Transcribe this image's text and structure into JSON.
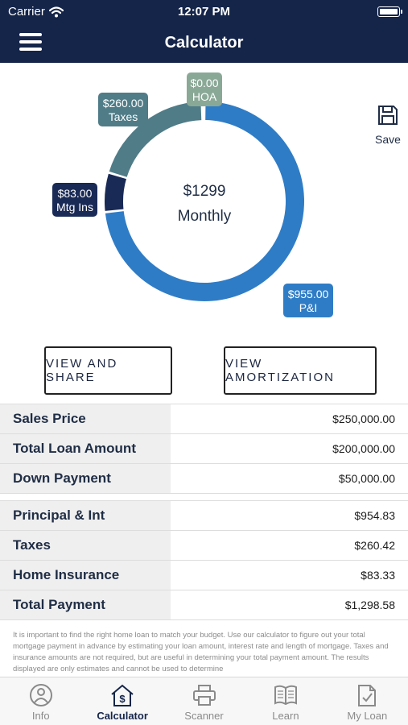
{
  "status_bar": {
    "carrier": "Carrier",
    "time": "12:07 PM"
  },
  "nav": {
    "title": "Calculator"
  },
  "chart_data": {
    "type": "pie",
    "style": "donut",
    "center_value": "$1299",
    "center_label": "Monthly",
    "slices": [
      {
        "name": "P&I",
        "label": "P&I",
        "value_label": "$955.00",
        "value": 955.0,
        "color": "#2f7cc6"
      },
      {
        "name": "Mtg Ins",
        "label": "Mtg Ins",
        "value_label": "$83.00",
        "value": 83.0,
        "color": "#1a2a56"
      },
      {
        "name": "Taxes",
        "label": "Taxes",
        "value_label": "$260.00",
        "value": 260.0,
        "color": "#4f7c87"
      },
      {
        "name": "HOA",
        "label": "HOA",
        "value_label": "$0.00",
        "value": 0.0,
        "color": "#8aa896"
      }
    ]
  },
  "save": {
    "label": "Save",
    "icon": "floppy-disk-icon"
  },
  "buttons": {
    "share": "VIEW AND SHARE",
    "amortization": "VIEW AMORTIZATION"
  },
  "loan_rows": [
    {
      "label": "Sales Price",
      "value": "$250,000.00"
    },
    {
      "label": "Total Loan Amount",
      "value": "$200,000.00"
    },
    {
      "label": "Down Payment",
      "value": "$50,000.00"
    }
  ],
  "payment_rows": [
    {
      "label": "Principal & Int",
      "value": "$954.83"
    },
    {
      "label": "Taxes",
      "value": "$260.42"
    },
    {
      "label": "Home Insurance",
      "value": "$83.33"
    },
    {
      "label": "Total Payment",
      "value": "$1,298.58"
    }
  ],
  "disclaimer": "It is important to find the right home loan to match your budget. Use our calculator to figure out your total mortgage payment in advance by estimating your loan amount, interest rate and length of mortgage. Taxes and insurance amounts are not required, but are useful in determining your total payment amount. The results displayed are only estimates and cannot be used to determine",
  "tabs": [
    {
      "label": "Info",
      "icon": "info-person-icon",
      "active": false
    },
    {
      "label": "Calculator",
      "icon": "house-dollar-icon",
      "active": true
    },
    {
      "label": "Scanner",
      "icon": "printer-icon",
      "active": false
    },
    {
      "label": "Learn",
      "icon": "open-book-icon",
      "active": false
    },
    {
      "label": "My Loan",
      "icon": "checklist-icon",
      "active": false
    }
  ]
}
